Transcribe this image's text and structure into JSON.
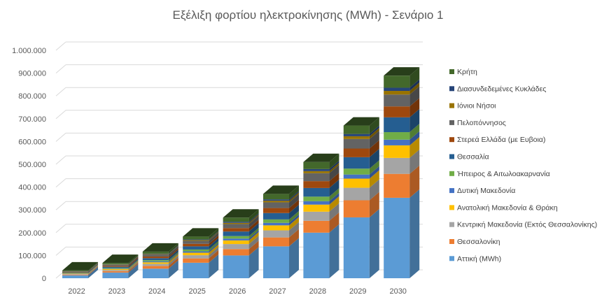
{
  "chart_data": {
    "type": "bar",
    "stacked": true,
    "three_d": true,
    "title": "Εξέλιξη φορτίου ηλεκτροκίνησης (MWh) - Σενάριο 1",
    "xlabel": "",
    "ylabel": "",
    "ylim": [
      0,
      1000000
    ],
    "y_ticks": [
      "0",
      "100.000",
      "200.000",
      "300.000",
      "400.000",
      "500.000",
      "600.000",
      "700.000",
      "800.000",
      "900.000",
      "1.000.000"
    ],
    "grid": true,
    "legend_position": "right",
    "categories": [
      "2022",
      "2023",
      "2024",
      "2025",
      "2026",
      "2027",
      "2028",
      "2029",
      "2030"
    ],
    "series": [
      {
        "name": "Αττική (MWh)",
        "color": "#5B9BD5",
        "values": [
          13000,
          25000,
          42000,
          68000,
          100000,
          140000,
          200000,
          267000,
          353000
        ]
      },
      {
        "name": "Θεσσαλονίκη",
        "color": "#ED7D31",
        "values": [
          3000,
          6000,
          12000,
          19000,
          28000,
          39000,
          52000,
          75000,
          105000
        ]
      },
      {
        "name": "Κεντρική Μακεδονία (Εκτός Θεσσαλονίκης)",
        "color": "#A5A5A5",
        "values": [
          2500,
          5000,
          9000,
          14000,
          22000,
          31000,
          40000,
          55000,
          70000
        ]
      },
      {
        "name": "Ανατολική Μακεδονία & Θράκη",
        "color": "#FFC000",
        "values": [
          2000,
          4000,
          7000,
          11000,
          16000,
          22000,
          31000,
          40000,
          55000
        ]
      },
      {
        "name": "Δυτική Μακεδονία",
        "color": "#4472C4",
        "values": [
          1000,
          2000,
          4000,
          6000,
          8000,
          11000,
          15000,
          18000,
          25000
        ]
      },
      {
        "name": "Ήπειρος & Αιτωλοακαρνανία",
        "color": "#70AD47",
        "values": [
          1500,
          3000,
          5000,
          8000,
          11000,
          15000,
          20000,
          26000,
          33000
        ]
      },
      {
        "name": "Θεσσαλία",
        "color": "#255E91",
        "values": [
          2500,
          5000,
          9000,
          14000,
          20000,
          28000,
          38000,
          50000,
          65000
        ]
      },
      {
        "name": "Στερεά Ελλάδα (με Ευβοια)",
        "color": "#9E480E",
        "values": [
          2000,
          4000,
          7000,
          11000,
          15000,
          22000,
          30000,
          38000,
          48000
        ]
      },
      {
        "name": "Πελοπόννησος",
        "color": "#636363",
        "values": [
          2500,
          5000,
          9000,
          13000,
          18000,
          25000,
          35000,
          42000,
          52000
        ]
      },
      {
        "name": "Ιόνιοι Νήσοι",
        "color": "#997300",
        "values": [
          500,
          1500,
          2000,
          3500,
          5000,
          7000,
          9000,
          12000,
          16000
        ]
      },
      {
        "name": "Διασυνδεδεμένες Κυκλάδες",
        "color": "#264478",
        "values": [
          500,
          1000,
          2000,
          3000,
          5000,
          6000,
          9000,
          10000,
          14000
        ]
      },
      {
        "name": "Κρήτη",
        "color": "#43682B",
        "values": [
          3000,
          5500,
          9000,
          12500,
          18000,
          24000,
          31000,
          37000,
          53000
        ]
      }
    ]
  }
}
